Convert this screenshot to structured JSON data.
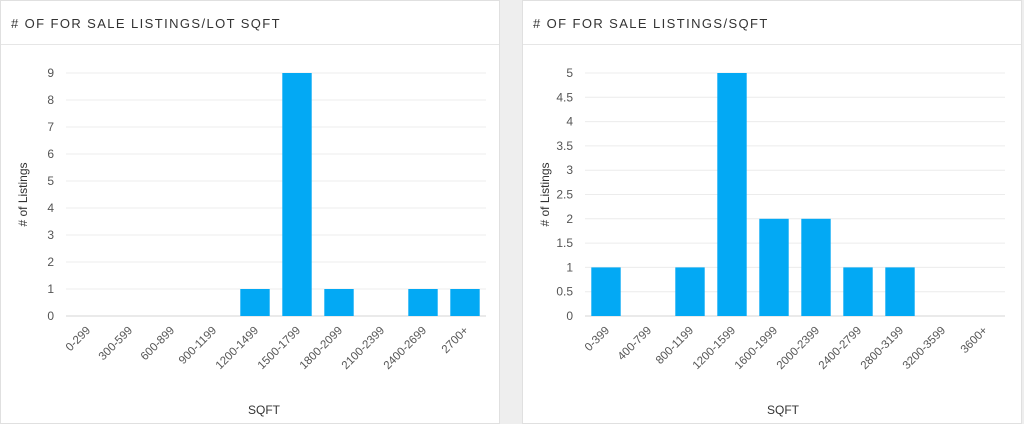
{
  "panels": [
    {
      "title": "# OF FOR SALE LISTINGS/LOT SQFT"
    },
    {
      "title": "# OF FOR SALE LISTINGS/SQFT"
    }
  ],
  "chart_data": [
    {
      "type": "bar",
      "title": "# OF FOR SALE LISTINGS/LOT SQFT",
      "xlabel": "SQFT",
      "ylabel": "# of Listings",
      "categories": [
        "0-299",
        "300-599",
        "600-899",
        "900-1199",
        "1200-1499",
        "1500-1799",
        "1800-2099",
        "2100-2399",
        "2400-2699",
        "2700+"
      ],
      "values": [
        0,
        0,
        0,
        0,
        1,
        9,
        1,
        0,
        1,
        1
      ],
      "ylim": [
        0,
        9
      ],
      "yticks": [
        "0",
        "1",
        "2",
        "3",
        "4",
        "5",
        "6",
        "7",
        "8",
        "9"
      ],
      "grid": true,
      "bar_color": "#03a9f4"
    },
    {
      "type": "bar",
      "title": "# OF FOR SALE LISTINGS/SQFT",
      "xlabel": "SQFT",
      "ylabel": "# of Listings",
      "categories": [
        "0-399",
        "400-799",
        "800-1199",
        "1200-1599",
        "1600-1999",
        "2000-2399",
        "2400-2799",
        "2800-3199",
        "3200-3599",
        "3600+"
      ],
      "values": [
        1,
        0,
        1,
        5,
        2,
        2,
        1,
        1,
        0,
        0
      ],
      "ylim": [
        0,
        5
      ],
      "yticks": [
        "0",
        "0.5",
        "1",
        "1.5",
        "2",
        "2.5",
        "3",
        "3.5",
        "4",
        "4.5",
        "5"
      ],
      "grid": true,
      "bar_color": "#03a9f4"
    }
  ]
}
